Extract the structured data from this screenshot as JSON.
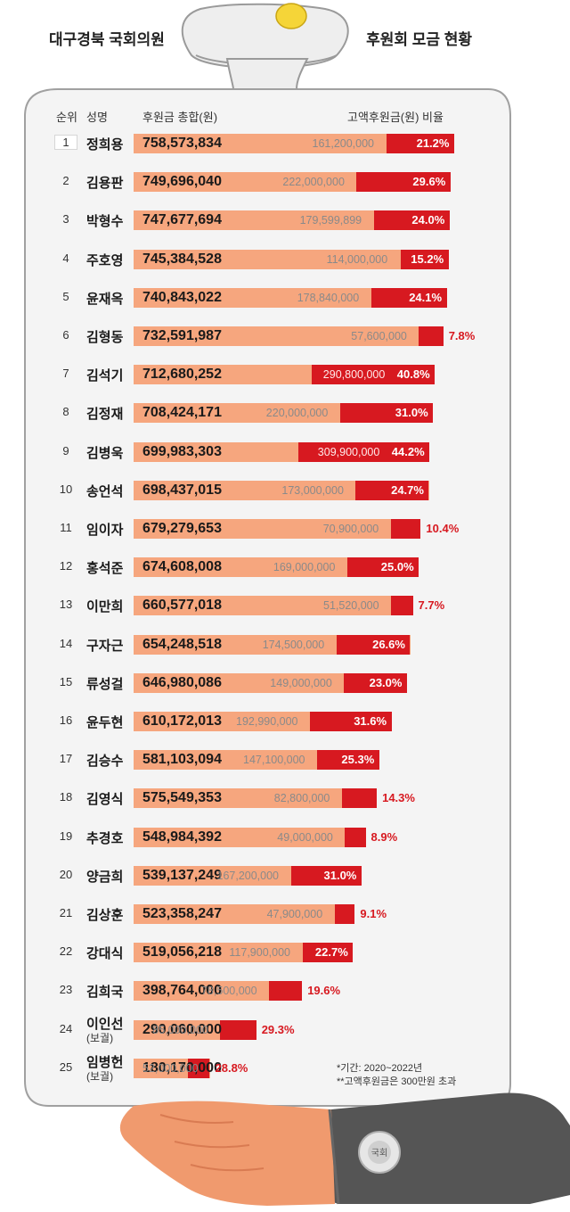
{
  "headline": {
    "left": "대구경북 국회의원",
    "right": "후원회 모금 현황"
  },
  "columns": {
    "rank": "순위",
    "name": "성명",
    "total": "후원금 총합(원)",
    "high": "고액후원금(원) 비율"
  },
  "footnotes": [
    "*기간: 2020~2022년",
    "**고액후원금은 300만원 초과"
  ],
  "badge_text": "국회",
  "colors": {
    "total_bar": "#f6a67e",
    "high_bar": "#d71920",
    "background": "#ffffff",
    "board": "#f4f4f4",
    "sleeve": "#555555",
    "skin": "#f09a6e"
  },
  "chart_data": {
    "type": "bar",
    "title": "",
    "xlabel": "",
    "ylabel": "",
    "categories": [
      "정희용",
      "김용판",
      "박형수",
      "주호영",
      "윤재옥",
      "김형동",
      "김석기",
      "김정재",
      "김병욱",
      "송언석",
      "임이자",
      "홍석준",
      "이만희",
      "구자근",
      "류성걸",
      "윤두현",
      "김승수",
      "김영식",
      "추경호",
      "양금희",
      "김상훈",
      "강대식",
      "김희국",
      "이인선",
      "임병헌"
    ],
    "ranks": [
      "1",
      "2",
      "3",
      "4",
      "5",
      "6",
      "7",
      "8",
      "9",
      "10",
      "11",
      "12",
      "13",
      "14",
      "15",
      "16",
      "17",
      "18",
      "19",
      "20",
      "21",
      "22",
      "23",
      "24",
      "25"
    ],
    "notes": [
      "",
      "",
      "",
      "",
      "",
      "",
      "",
      "",
      "",
      "",
      "",
      "",
      "",
      "",
      "",
      "",
      "",
      "",
      "",
      "",
      "",
      "",
      "",
      "(보궐)",
      "(보궐)"
    ],
    "series": [
      {
        "name": "후원금 총합(원)",
        "values": [
          758573834,
          749696040,
          747677694,
          745384528,
          740843022,
          732591987,
          712680252,
          708424171,
          699983303,
          698437015,
          679279653,
          674608008,
          660577018,
          654248518,
          646980086,
          610172013,
          581103094,
          575549353,
          548984392,
          539137249,
          523358247,
          519056218,
          398764000,
          290060000,
          180170000
        ],
        "labels": [
          "758,573,834",
          "749,696,040",
          "747,677,694",
          "745,384,528",
          "740,843,022",
          "732,591,987",
          "712,680,252",
          "708,424,171",
          "699,983,303",
          "698,437,015",
          "679,279,653",
          "674,608,008",
          "660,577,018",
          "654,248,518",
          "646,980,086",
          "610,172,013",
          "581,103,094",
          "575,549,353",
          "548,984,392",
          "539,137,249",
          "523,358,247",
          "519,056,218",
          "398,764,000",
          "290,060,000",
          "180,170,000"
        ]
      },
      {
        "name": "고액후원금(원)",
        "values": [
          161200000,
          222000000,
          179599899,
          114000000,
          178840000,
          57600000,
          290800000,
          220000000,
          309900000,
          173000000,
          70900000,
          169000000,
          51520000,
          174500000,
          149000000,
          192990000,
          147100000,
          82800000,
          49000000,
          167200000,
          47900000,
          117900000,
          78500000,
          85000000,
          52000000
        ],
        "labels": [
          "161,200,000",
          "222,000,000",
          "179,599,899",
          "114,000,000",
          "178,840,000",
          "57,600,000",
          "290,800,000",
          "220,000,000",
          "309,900,000",
          "173,000,000",
          "70,900,000",
          "169,000,000",
          "51,520,000",
          "174,500,000",
          "149,000,000",
          "192,990,000",
          "147,100,000",
          "82,800,000",
          "49,000,000",
          "167,200,000",
          "47,900,000",
          "117,900,000",
          "78,500,000",
          "85,000,000",
          "52,000,000"
        ]
      },
      {
        "name": "비율",
        "values": [
          21.2,
          29.6,
          24.0,
          15.2,
          24.1,
          7.8,
          40.8,
          31.0,
          44.2,
          24.7,
          10.4,
          25.0,
          7.7,
          26.6,
          23.0,
          31.6,
          25.3,
          14.3,
          8.9,
          31.0,
          9.1,
          22.7,
          19.6,
          29.3,
          28.8
        ],
        "labels": [
          "21.2%",
          "29.6%",
          "24.0%",
          "15.2%",
          "24.1%",
          "7.8%",
          "40.8%",
          "31.0%",
          "44.2%",
          "24.7%",
          "10.4%",
          "25.0%",
          "7.7%",
          "26.6%",
          "23.0%",
          "31.6%",
          "25.3%",
          "14.3%",
          "8.9%",
          "31.0%",
          "9.1%",
          "22.7%",
          "19.6%",
          "29.3%",
          "28.8%"
        ]
      }
    ]
  }
}
